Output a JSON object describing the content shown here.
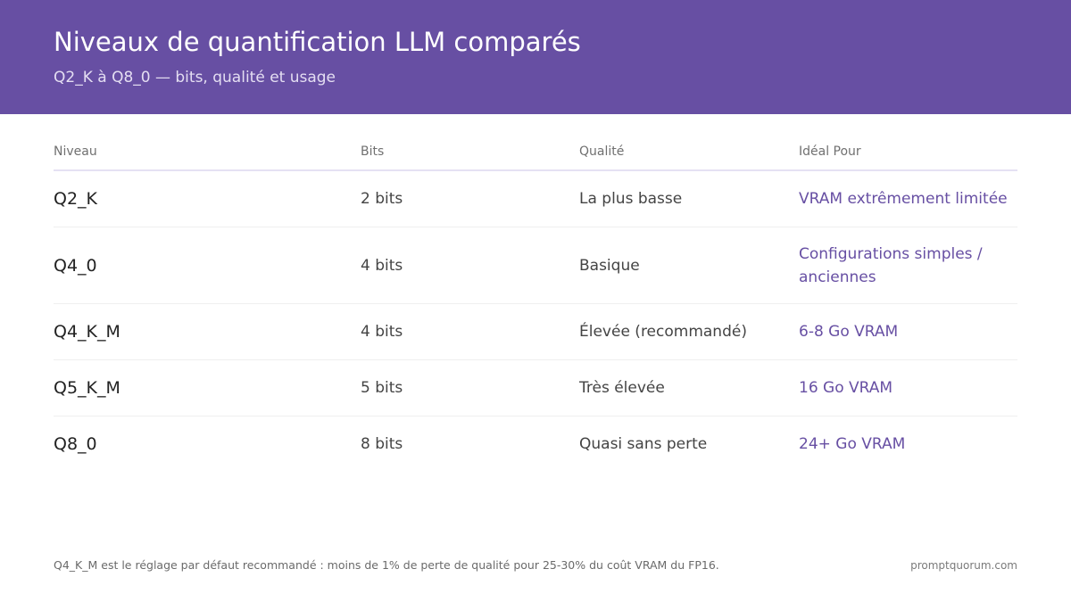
{
  "header": {
    "title": "Niveaux de quantification LLM comparés",
    "subtitle": "Q2_K à Q8_0 — bits, qualité et usage",
    "background_color": "#674fa3"
  },
  "table": {
    "columns": [
      "Niveau",
      "Bits",
      "Qualité",
      "Idéal Pour"
    ],
    "rows": [
      {
        "level": "Q2_K",
        "bits": "2 bits",
        "quality": "La plus basse",
        "ideal": "VRAM extrêmement limitée"
      },
      {
        "level": "Q4_0",
        "bits": "4 bits",
        "quality": "Basique",
        "ideal": "Configurations simples / anciennes"
      },
      {
        "level": "Q4_K_M",
        "bits": "4 bits",
        "quality": "Élevée (recommandé)",
        "ideal": "6-8 Go VRAM"
      },
      {
        "level": "Q5_K_M",
        "bits": "5 bits",
        "quality": "Très élevée",
        "ideal": "16 Go VRAM"
      },
      {
        "level": "Q8_0",
        "bits": "8 bits",
        "quality": "Quasi sans perte",
        "ideal": "24+ Go VRAM"
      }
    ],
    "accent_color": "#674fa3"
  },
  "footer": {
    "note": "Q4_K_M est le réglage par défaut recommandé : moins de 1% de perte de qualité pour 25-30% du coût VRAM du FP16.",
    "brand": "promptquorum.com"
  }
}
